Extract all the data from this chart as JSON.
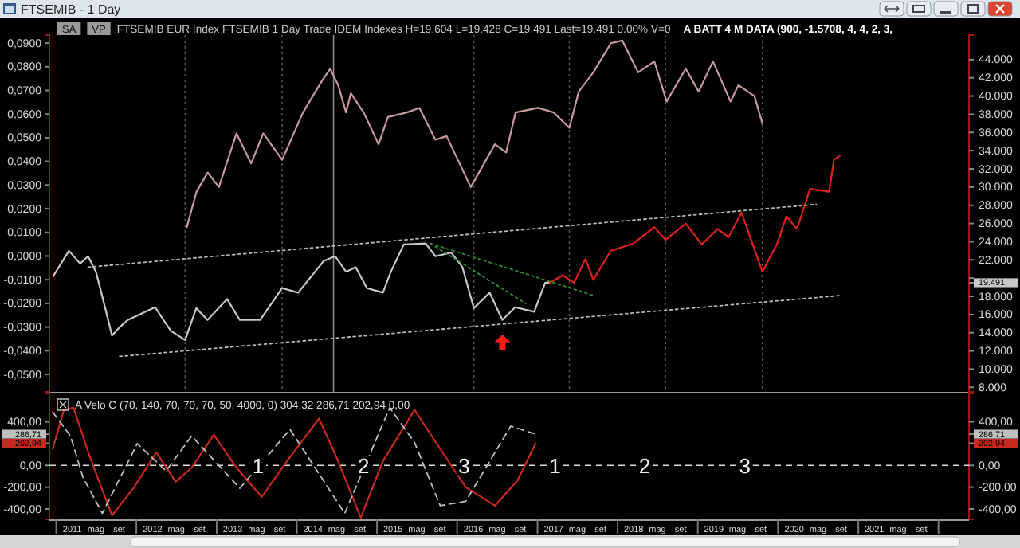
{
  "chart_data": [
    {
      "type": "line",
      "title": "FTSEMIB - 1 Day",
      "subtitle": "FTSEMIB   EUR Index FTSEMIB   1 Day   Trade   IDEM   Indexes   H=19.604  L=19.428  C=19.491  Last=19.491  0.00%  V=0",
      "annotations": [
        "SA",
        "VP",
        "A BATT 4 M DATA   (900, -1.5708, 4, 4, 2, 3,"
      ],
      "xlim": [
        "2010-12-01",
        "2022-05-20"
      ],
      "tick_labels": "y",
      "ylim": [
        -0.0574,
        0.0934
      ],
      "yticks": [
        {
          "value": 0.09,
          "label": "0,0900"
        },
        {
          "value": 0.08,
          "label": "0,0800"
        },
        {
          "value": 0.07,
          "label": "0,0700"
        },
        {
          "value": 0.06,
          "label": "0,0600"
        },
        {
          "value": 0.05,
          "label": "0,0500"
        },
        {
          "value": 0.04,
          "label": "0,0400"
        },
        {
          "value": 0.03,
          "label": "0,0300"
        },
        {
          "value": 0.02,
          "label": "0,0200"
        },
        {
          "value": 0.01,
          "label": "0,0100"
        },
        {
          "value": 0,
          "label": "0,0000"
        },
        {
          "value": -0.01,
          "label": "-0,0100"
        },
        {
          "value": -0.02,
          "label": "-0,0200"
        },
        {
          "value": -0.03,
          "label": "-0,0300"
        },
        {
          "value": -0.04,
          "label": "-0,0400"
        },
        {
          "value": -0.05,
          "label": "-0,0500"
        }
      ],
      "y2lim": [
        7500,
        46700
      ],
      "y2ticks": [
        {
          "value": 8000,
          "label": "8.000"
        },
        {
          "value": 10000,
          "label": "10.000"
        },
        {
          "value": 12000,
          "label": "12.000"
        },
        {
          "value": 14000,
          "label": "14.000"
        },
        {
          "value": 16000,
          "label": "16.000"
        },
        {
          "value": 18000,
          "label": "18.000"
        },
        {
          "value": 19491,
          "label": "19.491"
        },
        {
          "value": 20000,
          "label": null
        },
        {
          "value": 22000,
          "label": "22.000"
        },
        {
          "value": 24000,
          "label": "24.000"
        },
        {
          "value": 26000,
          "label": "26.000"
        },
        {
          "value": 28000,
          "label": "28.000"
        },
        {
          "value": 30000,
          "label": "30.000"
        },
        {
          "value": 32000,
          "label": "32.000"
        },
        {
          "value": 34000,
          "label": "34.000"
        },
        {
          "value": 36000,
          "label": "36.000"
        },
        {
          "value": 38000,
          "label": "38.000"
        },
        {
          "value": 40000,
          "label": "40.000"
        },
        {
          "value": 42000,
          "label": "42.000"
        },
        {
          "value": 44000,
          "label": "44.000"
        }
      ],
      "ref_lines": [
        {
          "axis": "x",
          "value": "2014-06-17",
          "color": "#8c8c8c",
          "line_style": "solid"
        },
        {
          "axis": "x",
          "value": "2012-08-10",
          "color": "#555555",
          "line_style": "dotted"
        },
        {
          "axis": "x",
          "value": "2013-10-26",
          "color": "#555555",
          "line_style": "dotted"
        },
        {
          "axis": "x",
          "value": "2016-03-17",
          "color": "#555555",
          "line_style": "dotted"
        },
        {
          "axis": "x",
          "value": "2017-05-26",
          "color": "#555555",
          "line_style": "dotted"
        },
        {
          "axis": "x",
          "value": "2018-08-07",
          "color": "#555555",
          "line_style": "dotted"
        },
        {
          "axis": "x",
          "value": "2019-10-22",
          "color": "#555555",
          "line_style": "dotted"
        }
      ],
      "series": [
        {
          "color": "#c8c8c8",
          "axis": "y2",
          "x": [
            "2010-12-18",
            "2011-02-28",
            "2011-04-20",
            "2011-05-26",
            "2011-07-01",
            "2011-08-07",
            "2011-09-12",
            "2011-10-17",
            "2011-11-23",
            "2012-03-26",
            "2012-06-06",
            "2012-08-10",
            "2012-09-30",
            "2012-11-20",
            "2013-02-17",
            "2013-04-16",
            "2013-07-18",
            "2013-10-26",
            "2014-01-07",
            "2014-05-04",
            "2014-06-24",
            "2014-08-13",
            "2014-09-26",
            "2014-11-16",
            "2015-01-28",
            "2015-03-05",
            "2015-05-03",
            "2015-08-11",
            "2015-09-24",
            "2015-12-05",
            "2016-01-25",
            "2016-03-17",
            "2016-05-28",
            "2016-07-25",
            "2016-09-21",
            "2016-12-17",
            "2017-02-05",
            "2017-02-26"
          ],
          "values": [
            20200,
            23000,
            21600,
            22400,
            20700,
            17200,
            13700,
            14600,
            15400,
            16800,
            14200,
            13200,
            16700,
            15400,
            17700,
            15400,
            15400,
            18900,
            18400,
            21900,
            22400,
            20700,
            21200,
            18900,
            18400,
            20700,
            23700,
            23800,
            22400,
            22800,
            21200,
            16700,
            18400,
            15400,
            16800,
            16300,
            19500,
            19491
          ]
        },
        {
          "color": "#e0201c",
          "axis": "y2",
          "x": [
            "2017-02-26",
            "2017-04-25",
            "2017-06-17",
            "2017-08-07",
            "2017-09-12",
            "2017-12-01",
            "2018-03-13",
            "2018-06-17",
            "2018-08-07",
            "2018-11-07",
            "2019-01-19",
            "2019-04-01",
            "2019-05-21",
            "2019-07-19",
            "2019-10-22",
            "2019-12-27",
            "2020-02-09",
            "2020-03-28",
            "2020-05-26",
            "2020-08-21",
            "2020-09-12",
            "2020-10-12"
          ],
          "values": [
            19491,
            20300,
            19500,
            22100,
            19800,
            23000,
            23800,
            25600,
            24200,
            26000,
            23700,
            25400,
            24500,
            27200,
            20700,
            23700,
            26800,
            25400,
            29800,
            29500,
            33000,
            33500
          ]
        },
        {
          "color": "#c89aa0",
          "axis": "y2",
          "x": [
            "2012-08-18",
            "2012-10-01",
            "2012-11-21",
            "2013-01-11",
            "2013-04-01",
            "2013-06-07",
            "2013-08-01",
            "2013-10-26",
            "2014-01-29",
            "2014-04-26",
            "2014-06-02",
            "2014-07-08",
            "2014-08-13",
            "2014-09-04",
            "2014-11-01",
            "2015-01-08",
            "2015-02-20",
            "2015-05-17",
            "2015-07-13",
            "2015-09-24",
            "2015-11-14",
            "2016-03-03",
            "2016-06-21",
            "2016-08-11",
            "2016-09-23",
            "2017-01-04",
            "2017-03-15",
            "2017-05-26",
            "2017-07-08",
            "2017-09-12",
            "2017-12-01",
            "2018-01-22",
            "2018-04-04",
            "2018-06-17",
            "2018-08-12",
            "2018-11-07",
            "2019-01-05",
            "2019-03-11",
            "2019-05-30",
            "2019-07-05",
            "2019-09-16",
            "2019-10-22"
          ],
          "values": [
            25600,
            29500,
            31600,
            30000,
            35900,
            32600,
            35900,
            33000,
            38200,
            41700,
            43000,
            41200,
            38200,
            40300,
            38200,
            34700,
            37700,
            38200,
            38700,
            35200,
            35600,
            30000,
            34700,
            33800,
            38200,
            38700,
            38200,
            36500,
            40500,
            42600,
            45800,
            46100,
            42600,
            43800,
            39400,
            43000,
            40500,
            43800,
            39400,
            41200,
            40000,
            37000
          ]
        },
        {
          "color": "#bbbbbb",
          "axis": "y2",
          "line_style": "dotted",
          "x": [
            "2011-05-26",
            "2020-06-24"
          ],
          "values": [
            21200,
            28100
          ]
        },
        {
          "color": "#bbbbbb",
          "axis": "y2",
          "line_style": "dotted",
          "x": [
            "2011-10-17",
            "2020-10-19"
          ],
          "values": [
            11400,
            18100
          ]
        },
        {
          "color": "#2e8b2e",
          "axis": "y2",
          "line_style": "dotted",
          "x": [
            "2015-09-02",
            "2017-09-12"
          ],
          "values": [
            23800,
            18100
          ]
        },
        {
          "color": "#2e8b2e",
          "axis": "y2",
          "line_style": "dotted",
          "x": [
            "2015-09-02",
            "2016-11-09"
          ],
          "values": [
            23800,
            17200
          ]
        }
      ]
    },
    {
      "type": "line",
      "title": "A Velo C   (70, 140, 70, 70, 70, 50, 4000, 0)   304,32   286,71   202,94   0,00",
      "annotations": [
        {
          "text": "1",
          "x": "2013-07-09",
          "y": 0
        },
        {
          "text": "2",
          "x": "2014-11-01",
          "y": 0
        },
        {
          "text": "3",
          "x": "2016-02-02",
          "y": 0
        },
        {
          "text": "1",
          "x": "2017-03-22",
          "y": 0
        },
        {
          "text": "2",
          "x": "2018-05-04",
          "y": 0
        },
        {
          "text": "3",
          "x": "2019-08-03",
          "y": 0
        }
      ],
      "xlim": [
        "2010-12-01",
        "2022-05-20"
      ],
      "xticks": [
        {
          "value": "2011-01-01",
          "label": null
        },
        {
          "value": "2011-03-15",
          "label": "2011"
        },
        {
          "value": "2011-07-01",
          "label": "mag"
        },
        {
          "value": "2011-10-15",
          "label": "set"
        },
        {
          "value": "2012-01-01",
          "label": null
        },
        {
          "value": "2012-03-15",
          "label": "2012"
        },
        {
          "value": "2012-07-01",
          "label": "mag"
        },
        {
          "value": "2012-10-15",
          "label": "set"
        },
        {
          "value": "2013-01-01",
          "label": null
        },
        {
          "value": "2013-03-15",
          "label": "2013"
        },
        {
          "value": "2013-07-01",
          "label": "mag"
        },
        {
          "value": "2013-10-15",
          "label": "set"
        },
        {
          "value": "2014-01-01",
          "label": null
        },
        {
          "value": "2014-03-15",
          "label": "2014"
        },
        {
          "value": "2014-07-01",
          "label": "mag"
        },
        {
          "value": "2014-10-15",
          "label": "set"
        },
        {
          "value": "2015-01-01",
          "label": null
        },
        {
          "value": "2015-03-15",
          "label": "2015"
        },
        {
          "value": "2015-07-01",
          "label": "mag"
        },
        {
          "value": "2015-10-15",
          "label": "set"
        },
        {
          "value": "2016-01-01",
          "label": null
        },
        {
          "value": "2016-03-15",
          "label": "2016"
        },
        {
          "value": "2016-07-01",
          "label": "mag"
        },
        {
          "value": "2016-10-15",
          "label": "set"
        },
        {
          "value": "2017-01-01",
          "label": null
        },
        {
          "value": "2017-03-15",
          "label": "2017"
        },
        {
          "value": "2017-07-01",
          "label": "mag"
        },
        {
          "value": "2017-10-15",
          "label": "set"
        },
        {
          "value": "2018-01-01",
          "label": null
        },
        {
          "value": "2018-03-15",
          "label": "2018"
        },
        {
          "value": "2018-07-01",
          "label": "mag"
        },
        {
          "value": "2018-10-15",
          "label": "set"
        },
        {
          "value": "2019-01-01",
          "label": null
        },
        {
          "value": "2019-03-15",
          "label": "2019"
        },
        {
          "value": "2019-07-01",
          "label": "mag"
        },
        {
          "value": "2019-10-15",
          "label": "set"
        },
        {
          "value": "2020-01-01",
          "label": null
        },
        {
          "value": "2020-03-15",
          "label": "2020"
        },
        {
          "value": "2020-07-01",
          "label": "mag"
        },
        {
          "value": "2020-10-15",
          "label": "set"
        },
        {
          "value": "2021-01-01",
          "label": null
        },
        {
          "value": "2021-03-15",
          "label": "2021"
        },
        {
          "value": "2021-07-01",
          "label": "mag"
        },
        {
          "value": "2021-10-15",
          "label": "set"
        },
        {
          "value": "2022-01-01",
          "label": null
        }
      ],
      "ylim": [
        -495,
        660
      ],
      "yticks": [
        {
          "value": 400,
          "label": "400,00"
        },
        {
          "value": 286.71,
          "label": "286,71"
        },
        {
          "value": 202.94,
          "label": "202,94"
        },
        {
          "value": 0,
          "label": "0,00"
        },
        {
          "value": -200,
          "label": "-200,00"
        },
        {
          "value": -400,
          "label": "-400,00"
        }
      ],
      "y2lim": [
        -495,
        660
      ],
      "y2ticks": [
        {
          "value": 400,
          "label": "400,00"
        },
        {
          "value": 286.71,
          "label": "286,71"
        },
        {
          "value": 202.94,
          "label": "202,94"
        },
        {
          "value": 0,
          "label": "0,00"
        },
        {
          "value": -200,
          "label": "-200,00"
        },
        {
          "value": -400,
          "label": "-400,00"
        }
      ],
      "ref_lines": [
        {
          "axis": "y",
          "value": 0,
          "color": "#dddddd",
          "line_style": "dashed"
        }
      ],
      "series": [
        {
          "color": "#c8281e",
          "x": [
            "2010-12-16",
            "2011-02-05",
            "2011-03-21",
            "2011-06-01",
            "2011-09-12",
            "2011-12-22",
            "2012-04-01",
            "2012-06-28",
            "2012-09-09",
            "2012-12-19",
            "2013-04-01",
            "2013-07-25",
            "2013-11-17",
            "2014-04-12",
            "2014-07-08",
            "2014-10-19",
            "2015-01-28",
            "2015-06-21",
            "2015-10-16",
            "2016-02-09",
            "2016-06-21",
            "2016-10-01",
            "2016-12-24"
          ],
          "values": [
            150,
            510,
            530,
            90,
            -460,
            -200,
            120,
            -150,
            -20,
            280,
            -20,
            -290,
            40,
            430,
            40,
            -480,
            40,
            510,
            150,
            -200,
            -370,
            -140,
            202.94
          ]
        },
        {
          "color": "#bfbfbf",
          "line_style": "dashed",
          "x": [
            "2010-12-16",
            "2011-03-07",
            "2011-05-03",
            "2011-07-30",
            "2012-01-05",
            "2012-05-15",
            "2012-09-09",
            "2013-04-16",
            "2013-12-01",
            "2014-08-07",
            "2015-02-28",
            "2015-06-21",
            "2015-10-16",
            "2016-02-09",
            "2016-09-01",
            "2016-12-24"
          ],
          "values": [
            490,
            270,
            -110,
            -440,
            200,
            -50,
            270,
            -210,
            330,
            -440,
            530,
            210,
            -370,
            -330,
            360,
            286.71
          ]
        }
      ]
    }
  ]
}
